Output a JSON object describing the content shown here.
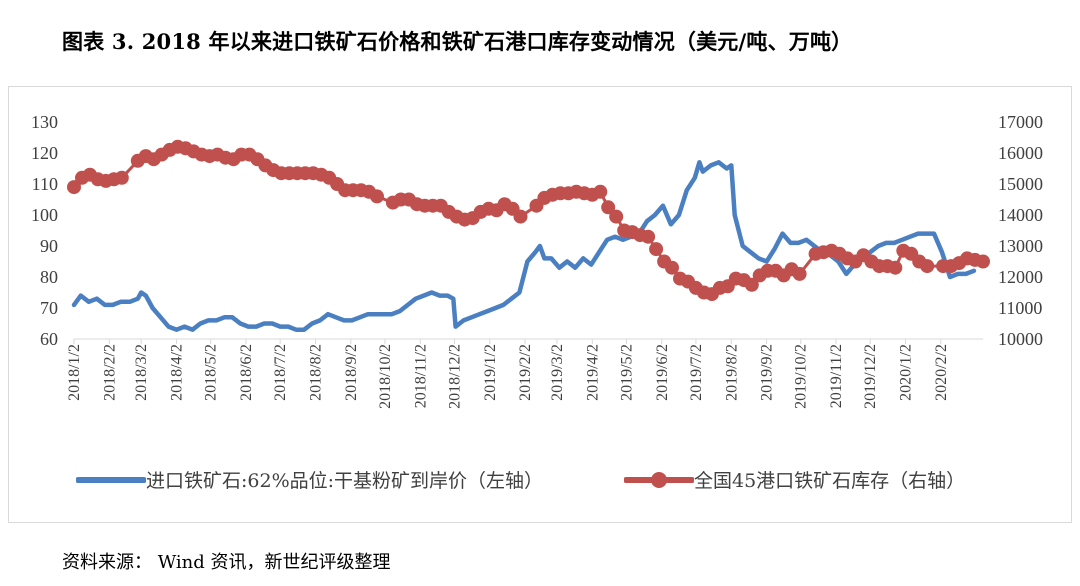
{
  "figure": {
    "title": "图表 3. 2018 年以来进口铁矿石价格和铁矿石港口库存变动情况（美元/吨、万吨）",
    "source": "资料来源：    Wind 资讯，新世纪评级整理"
  },
  "colors": {
    "price": "#4a7fc1",
    "inventory": "#c0504d",
    "axis": "#d9d9d9",
    "text": "#404040"
  },
  "chart_data": {
    "type": "line",
    "title": "",
    "grid": false,
    "legend_position": "bottom",
    "x_start": "2018/1/2",
    "x_end": "2020/3/10",
    "x_tick_labels": [
      "2018/1/2",
      "2018/2/2",
      "2018/3/2",
      "2018/4/2",
      "2018/5/2",
      "2018/6/2",
      "2018/7/2",
      "2018/8/2",
      "2018/9/2",
      "2018/10/2",
      "2018/11/2",
      "2018/12/2",
      "2019/1/2",
      "2019/2/2",
      "2019/3/2",
      "2019/4/2",
      "2019/5/2",
      "2019/6/2",
      "2019/7/2",
      "2019/8/2",
      "2019/9/2",
      "2019/10/2",
      "2019/11/2",
      "2019/12/2",
      "2020/1/2",
      "2020/2/2"
    ],
    "y_left": {
      "min": 60,
      "max": 130,
      "ticks": [
        "60",
        "70",
        "80",
        "90",
        "100",
        "110",
        "120",
        "130"
      ]
    },
    "y_right": {
      "min": 10000,
      "max": 17000,
      "ticks": [
        "10000",
        "11000",
        "12000",
        "13000",
        "14000",
        "15000",
        "16000",
        "17000"
      ]
    },
    "series": [
      {
        "name": "进口铁矿石:62%品位:干基粉矿到岸价（左轴）",
        "axis": "left",
        "style": "line",
        "points": [
          [
            "2018/1/2",
            71
          ],
          [
            "2018/1/8",
            74
          ],
          [
            "2018/1/15",
            72
          ],
          [
            "2018/1/22",
            73
          ],
          [
            "2018/1/29",
            71
          ],
          [
            "2018/2/5",
            71
          ],
          [
            "2018/2/12",
            72
          ],
          [
            "2018/2/20",
            72
          ],
          [
            "2018/2/27",
            73
          ],
          [
            "2018/3/2",
            75
          ],
          [
            "2018/3/6",
            74
          ],
          [
            "2018/3/12",
            70
          ],
          [
            "2018/3/19",
            67
          ],
          [
            "2018/3/26",
            64
          ],
          [
            "2018/4/2",
            63
          ],
          [
            "2018/4/9",
            64
          ],
          [
            "2018/4/16",
            63
          ],
          [
            "2018/4/23",
            65
          ],
          [
            "2018/4/30",
            66
          ],
          [
            "2018/5/7",
            66
          ],
          [
            "2018/5/14",
            67
          ],
          [
            "2018/5/21",
            67
          ],
          [
            "2018/5/28",
            65
          ],
          [
            "2018/6/4",
            64
          ],
          [
            "2018/6/11",
            64
          ],
          [
            "2018/6/18",
            65
          ],
          [
            "2018/6/25",
            65
          ],
          [
            "2018/7/2",
            64
          ],
          [
            "2018/7/9",
            64
          ],
          [
            "2018/7/16",
            63
          ],
          [
            "2018/7/23",
            63
          ],
          [
            "2018/7/30",
            65
          ],
          [
            "2018/8/6",
            66
          ],
          [
            "2018/8/13",
            68
          ],
          [
            "2018/8/20",
            67
          ],
          [
            "2018/8/27",
            66
          ],
          [
            "2018/9/3",
            66
          ],
          [
            "2018/9/10",
            67
          ],
          [
            "2018/9/17",
            68
          ],
          [
            "2018/9/24",
            68
          ],
          [
            "2018/10/1",
            68
          ],
          [
            "2018/10/8",
            68
          ],
          [
            "2018/10/15",
            69
          ],
          [
            "2018/10/22",
            71
          ],
          [
            "2018/10/29",
            73
          ],
          [
            "2018/11/5",
            74
          ],
          [
            "2018/11/12",
            75
          ],
          [
            "2018/11/19",
            74
          ],
          [
            "2018/11/26",
            74
          ],
          [
            "2018/12/1",
            73
          ],
          [
            "2018/12/3",
            64
          ],
          [
            "2018/12/10",
            66
          ],
          [
            "2018/12/17",
            67
          ],
          [
            "2018/12/24",
            68
          ],
          [
            "2018/12/31",
            69
          ],
          [
            "2019/1/7",
            70
          ],
          [
            "2019/1/14",
            71
          ],
          [
            "2019/1/21",
            73
          ],
          [
            "2019/1/28",
            75
          ],
          [
            "2019/2/4",
            85
          ],
          [
            "2019/2/11",
            88
          ],
          [
            "2019/2/15",
            90
          ],
          [
            "2019/2/19",
            86
          ],
          [
            "2019/2/25",
            86
          ],
          [
            "2019/3/4",
            83
          ],
          [
            "2019/3/11",
            85
          ],
          [
            "2019/3/18",
            83
          ],
          [
            "2019/3/25",
            86
          ],
          [
            "2019/4/1",
            84
          ],
          [
            "2019/4/8",
            88
          ],
          [
            "2019/4/15",
            92
          ],
          [
            "2019/4/22",
            93
          ],
          [
            "2019/4/29",
            92
          ],
          [
            "2019/5/6",
            93
          ],
          [
            "2019/5/13",
            94
          ],
          [
            "2019/5/20",
            98
          ],
          [
            "2019/5/27",
            100
          ],
          [
            "2019/6/3",
            103
          ],
          [
            "2019/6/10",
            97
          ],
          [
            "2019/6/17",
            100
          ],
          [
            "2019/6/24",
            108
          ],
          [
            "2019/7/1",
            112
          ],
          [
            "2019/7/5",
            117
          ],
          [
            "2019/7/8",
            114
          ],
          [
            "2019/7/15",
            116
          ],
          [
            "2019/7/22",
            117
          ],
          [
            "2019/7/29",
            115
          ],
          [
            "2019/8/2",
            116
          ],
          [
            "2019/8/5",
            100
          ],
          [
            "2019/8/12",
            90
          ],
          [
            "2019/8/19",
            88
          ],
          [
            "2019/8/26",
            86
          ],
          [
            "2019/9/2",
            85
          ],
          [
            "2019/9/9",
            89
          ],
          [
            "2019/9/16",
            94
          ],
          [
            "2019/9/23",
            91
          ],
          [
            "2019/9/30",
            91
          ],
          [
            "2019/10/7",
            92
          ],
          [
            "2019/10/14",
            90
          ],
          [
            "2019/10/21",
            88
          ],
          [
            "2019/10/28",
            87
          ],
          [
            "2019/11/4",
            85
          ],
          [
            "2019/11/11",
            81
          ],
          [
            "2019/11/18",
            84
          ],
          [
            "2019/11/25",
            86
          ],
          [
            "2019/12/2",
            88
          ],
          [
            "2019/12/9",
            90
          ],
          [
            "2019/12/16",
            91
          ],
          [
            "2019/12/23",
            91
          ],
          [
            "2019/12/30",
            92
          ],
          [
            "2020/1/6",
            93
          ],
          [
            "2020/1/13",
            94
          ],
          [
            "2020/1/20",
            94
          ],
          [
            "2020/1/27",
            94
          ],
          [
            "2020/2/3",
            88
          ],
          [
            "2020/2/10",
            80
          ],
          [
            "2020/2/17",
            81
          ],
          [
            "2020/2/24",
            81
          ],
          [
            "2020/3/2",
            82
          ]
        ]
      },
      {
        "name": "全国45港口铁矿石库存（右轴）",
        "axis": "right",
        "style": "line-with-markers",
        "points": [
          [
            "2018/1/2",
            14900
          ],
          [
            "2018/1/9",
            15200
          ],
          [
            "2018/1/16",
            15300
          ],
          [
            "2018/1/23",
            15150
          ],
          [
            "2018/1/30",
            15100
          ],
          [
            "2018/2/6",
            15150
          ],
          [
            "2018/2/13",
            15200
          ],
          [
            "2018/2/27",
            15750
          ],
          [
            "2018/3/6",
            15900
          ],
          [
            "2018/3/13",
            15800
          ],
          [
            "2018/3/20",
            15950
          ],
          [
            "2018/3/27",
            16100
          ],
          [
            "2018/4/3",
            16200
          ],
          [
            "2018/4/10",
            16150
          ],
          [
            "2018/4/17",
            16050
          ],
          [
            "2018/4/24",
            15950
          ],
          [
            "2018/5/1",
            15900
          ],
          [
            "2018/5/8",
            15950
          ],
          [
            "2018/5/15",
            15850
          ],
          [
            "2018/5/22",
            15800
          ],
          [
            "2018/5/29",
            15950
          ],
          [
            "2018/6/5",
            15950
          ],
          [
            "2018/6/12",
            15800
          ],
          [
            "2018/6/19",
            15600
          ],
          [
            "2018/6/26",
            15450
          ],
          [
            "2018/7/3",
            15350
          ],
          [
            "2018/7/10",
            15350
          ],
          [
            "2018/7/17",
            15350
          ],
          [
            "2018/7/24",
            15350
          ],
          [
            "2018/7/31",
            15350
          ],
          [
            "2018/8/7",
            15300
          ],
          [
            "2018/8/14",
            15200
          ],
          [
            "2018/8/21",
            15000
          ],
          [
            "2018/8/28",
            14800
          ],
          [
            "2018/9/4",
            14800
          ],
          [
            "2018/9/11",
            14800
          ],
          [
            "2018/9/18",
            14750
          ],
          [
            "2018/9/25",
            14600
          ],
          [
            "2018/10/9",
            14400
          ],
          [
            "2018/10/16",
            14500
          ],
          [
            "2018/10/23",
            14500
          ],
          [
            "2018/10/30",
            14350
          ],
          [
            "2018/11/6",
            14300
          ],
          [
            "2018/11/13",
            14300
          ],
          [
            "2018/11/20",
            14300
          ],
          [
            "2018/11/27",
            14100
          ],
          [
            "2018/12/4",
            13950
          ],
          [
            "2018/12/11",
            13850
          ],
          [
            "2018/12/18",
            13900
          ],
          [
            "2018/12/25",
            14100
          ],
          [
            "2019/1/1",
            14200
          ],
          [
            "2019/1/8",
            14150
          ],
          [
            "2019/1/15",
            14350
          ],
          [
            "2019/1/22",
            14200
          ],
          [
            "2019/1/29",
            13950
          ],
          [
            "2019/2/12",
            14300
          ],
          [
            "2019/2/19",
            14550
          ],
          [
            "2019/2/26",
            14650
          ],
          [
            "2019/3/5",
            14700
          ],
          [
            "2019/3/12",
            14700
          ],
          [
            "2019/3/19",
            14750
          ],
          [
            "2019/3/26",
            14700
          ],
          [
            "2019/4/2",
            14650
          ],
          [
            "2019/4/9",
            14750
          ],
          [
            "2019/4/16",
            14250
          ],
          [
            "2019/4/23",
            13950
          ],
          [
            "2019/4/30",
            13500
          ],
          [
            "2019/5/7",
            13450
          ],
          [
            "2019/5/14",
            13350
          ],
          [
            "2019/5/21",
            13300
          ],
          [
            "2019/5/28",
            12900
          ],
          [
            "2019/6/4",
            12500
          ],
          [
            "2019/6/11",
            12300
          ],
          [
            "2019/6/18",
            11950
          ],
          [
            "2019/6/25",
            11850
          ],
          [
            "2019/7/2",
            11650
          ],
          [
            "2019/7/9",
            11500
          ],
          [
            "2019/7/16",
            11450
          ],
          [
            "2019/7/23",
            11650
          ],
          [
            "2019/7/30",
            11700
          ],
          [
            "2019/8/6",
            11950
          ],
          [
            "2019/8/13",
            11900
          ],
          [
            "2019/8/20",
            11750
          ],
          [
            "2019/8/27",
            12050
          ],
          [
            "2019/9/3",
            12200
          ],
          [
            "2019/9/10",
            12200
          ],
          [
            "2019/9/17",
            12050
          ],
          [
            "2019/9/24",
            12250
          ],
          [
            "2019/10/1",
            12100
          ],
          [
            "2019/10/15",
            12750
          ],
          [
            "2019/10/22",
            12800
          ],
          [
            "2019/10/29",
            12850
          ],
          [
            "2019/11/5",
            12750
          ],
          [
            "2019/11/12",
            12600
          ],
          [
            "2019/11/19",
            12500
          ],
          [
            "2019/11/26",
            12700
          ],
          [
            "2019/12/3",
            12500
          ],
          [
            "2019/12/10",
            12350
          ],
          [
            "2019/12/17",
            12350
          ],
          [
            "2019/12/24",
            12300
          ],
          [
            "2019/12/31",
            12850
          ],
          [
            "2020/1/7",
            12750
          ],
          [
            "2020/1/14",
            12500
          ],
          [
            "2020/1/21",
            12350
          ],
          [
            "2020/2/4",
            12350
          ],
          [
            "2020/2/11",
            12350
          ],
          [
            "2020/2/18",
            12450
          ],
          [
            "2020/2/25",
            12600
          ],
          [
            "2020/3/3",
            12550
          ],
          [
            "2020/3/10",
            12500
          ]
        ]
      }
    ]
  }
}
